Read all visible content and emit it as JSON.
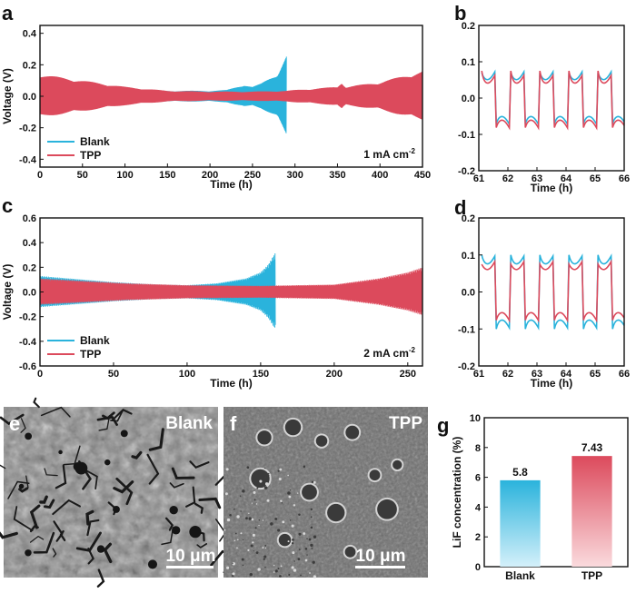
{
  "colors": {
    "blank": "#2ab3dc",
    "tpp": "#dc4a5c"
  },
  "charts": [
    {
      "panel": "a",
      "type": "line",
      "xlabel": "Time (h)",
      "ylabel": "Voltage (V)",
      "xlim": [
        0,
        450
      ],
      "ylim": [
        -0.45,
        0.45
      ],
      "xticks": [
        "0",
        "50",
        "100",
        "150",
        "200",
        "250",
        "300",
        "350",
        "400",
        "450"
      ],
      "yticks": [
        "-0.4",
        "-0.2",
        "0.0",
        "0.2",
        "0.4"
      ],
      "legend": [
        "Blank",
        "TPP"
      ],
      "annotation": "1 mA cm",
      "annotation_sup": "-2",
      "series": [
        {
          "name": "Blank",
          "x": [
            0,
            20,
            60,
            100,
            150,
            200,
            220,
            240,
            250,
            260,
            280,
            290
          ],
          "amplitude": [
            0.13,
            0.11,
            0.08,
            0.05,
            0.035,
            0.035,
            0.04,
            0.075,
            0.06,
            0.08,
            0.15,
            0.26
          ]
        },
        {
          "name": "TPP",
          "x": [
            0,
            50,
            100,
            150,
            200,
            250,
            290,
            300,
            350,
            355,
            360,
            400,
            450
          ],
          "amplitude": [
            0.14,
            0.1,
            0.06,
            0.035,
            0.03,
            0.03,
            0.035,
            0.04,
            0.06,
            0.09,
            0.06,
            0.09,
            0.16
          ]
        }
      ]
    },
    {
      "panel": "b",
      "type": "line",
      "xlabel": "Time (h)",
      "ylabel": "",
      "xlim": [
        61,
        66
      ],
      "ylim": [
        -0.2,
        0.2
      ],
      "xticks": [
        "61",
        "62",
        "63",
        "64",
        "65",
        "66"
      ],
      "yticks": [
        "-0.2",
        "-0.1",
        "0.0",
        "0.1",
        "0.2"
      ],
      "cycle_period_h": 1,
      "series": [
        {
          "name": "Blank",
          "high": 0.06,
          "low": -0.06,
          "spike": 0.07
        },
        {
          "name": "TPP",
          "high": 0.05,
          "low": -0.07,
          "spike": 0.075
        }
      ]
    },
    {
      "panel": "c",
      "type": "line",
      "xlabel": "Time (h)",
      "ylabel": "Voltage (V)",
      "xlim": [
        0,
        260
      ],
      "ylim": [
        -0.6,
        0.6
      ],
      "xticks": [
        "0",
        "50",
        "100",
        "150",
        "200",
        "250"
      ],
      "yticks": [
        "-0.6",
        "-0.4",
        "-0.2",
        "0.0",
        "0.2",
        "0.4",
        "0.6"
      ],
      "legend": [
        "Blank",
        "TPP"
      ],
      "annotation": "2 mA cm",
      "annotation_sup": "-2",
      "series": [
        {
          "name": "Blank",
          "x": [
            0,
            20,
            50,
            80,
            100,
            120,
            140,
            150,
            155,
            160
          ],
          "amplitude": [
            0.13,
            0.11,
            0.08,
            0.06,
            0.055,
            0.07,
            0.11,
            0.16,
            0.22,
            0.32
          ]
        },
        {
          "name": "TPP",
          "x": [
            0,
            30,
            60,
            100,
            150,
            200,
            230,
            250,
            260
          ],
          "amplitude": [
            0.11,
            0.09,
            0.07,
            0.055,
            0.05,
            0.06,
            0.11,
            0.16,
            0.2
          ]
        }
      ]
    },
    {
      "panel": "d",
      "type": "line",
      "xlabel": "Time (h)",
      "ylabel": "",
      "xlim": [
        61,
        66
      ],
      "ylim": [
        -0.2,
        0.2
      ],
      "xticks": [
        "61",
        "62",
        "63",
        "64",
        "65",
        "66"
      ],
      "yticks": [
        "-0.2",
        "-0.1",
        "0.0",
        "0.1",
        "0.2"
      ],
      "cycle_period_h": 1,
      "series": [
        {
          "name": "Blank",
          "high": 0.085,
          "low": -0.085,
          "spike": 0.1
        },
        {
          "name": "TPP",
          "high": 0.07,
          "low": -0.065,
          "spike": 0.075
        }
      ]
    },
    {
      "panel": "g",
      "type": "bar",
      "ylabel": "LiF concentration (%)",
      "ylim": [
        0,
        10
      ],
      "yticks": [
        "0",
        "2",
        "4",
        "6",
        "8",
        "10"
      ],
      "categories": [
        "Blank",
        "TPP"
      ],
      "values": [
        5.8,
        7.43
      ],
      "value_labels": [
        "5.8",
        "7.43"
      ]
    }
  ],
  "images": [
    {
      "panel": "e",
      "label": "Blank",
      "scale": "10 μm"
    },
    {
      "panel": "f",
      "label": "TPP",
      "scale": "10 μm"
    }
  ]
}
